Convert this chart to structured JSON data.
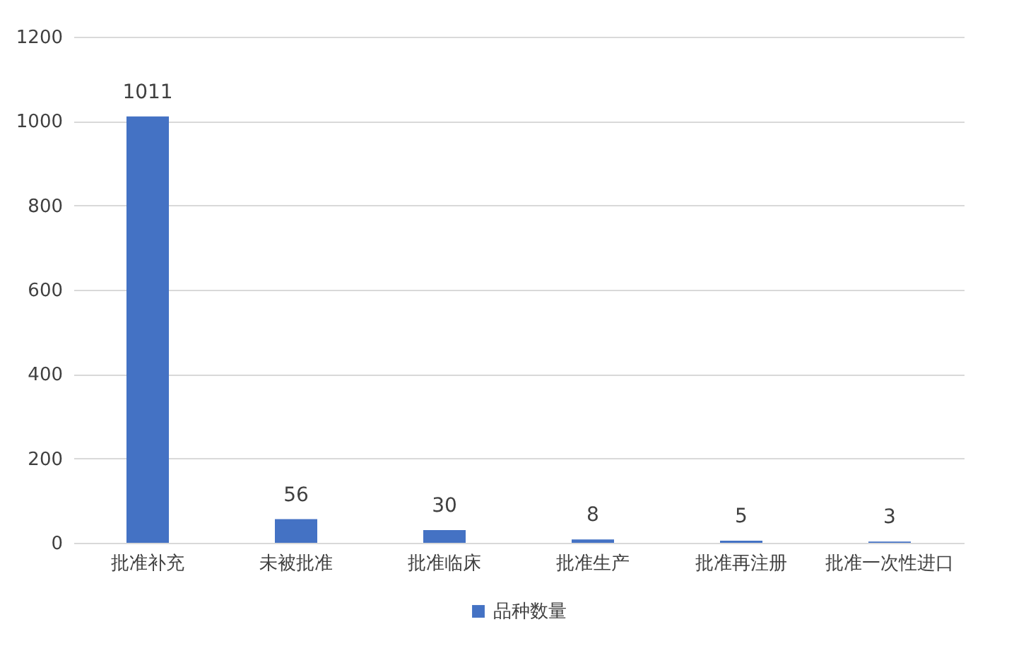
{
  "chart_data": {
    "type": "bar",
    "categories": [
      "批准补充",
      "未被批准",
      "批准临床",
      "批准生产",
      "批准再注册",
      "批准一次性进口"
    ],
    "series": [
      {
        "name": "品种数量",
        "color": "#4472c4",
        "values": [
          1011,
          56,
          30,
          8,
          5,
          3
        ]
      }
    ],
    "ylim": [
      0,
      1200
    ],
    "yticks": [
      0,
      200,
      400,
      600,
      800,
      1000,
      1200
    ],
    "grid": "y",
    "legend": "bottom",
    "data_labels": true
  }
}
